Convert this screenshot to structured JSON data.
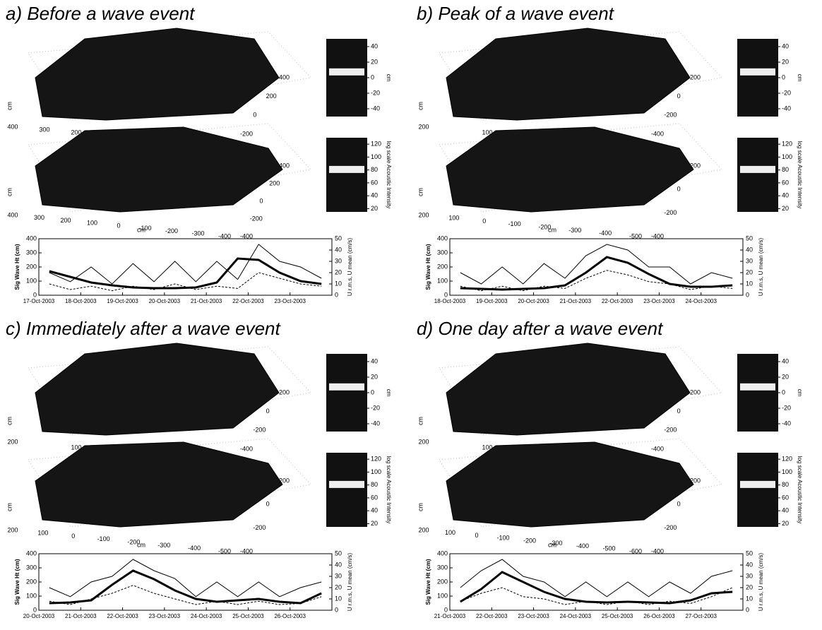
{
  "chart_data": [
    {
      "type": "line",
      "title": "a) Before a wave event",
      "categories": [
        "17-Oct-2003",
        null,
        "18-Oct-2003",
        null,
        "19-Oct-2003",
        null,
        "20-Oct-2003",
        null,
        "21-Oct-2003",
        null,
        "22-Oct-2003",
        null,
        "23-Oct-2003",
        null
      ],
      "ylabel": "Sig Wave Ht (cm)",
      "ylim": [
        0,
        400
      ],
      "yticks": [
        0,
        100,
        200,
        300,
        400
      ],
      "y2label": "U r.m.s, U mean (cm/s)",
      "y2lim": [
        0,
        50
      ],
      "y2ticks": [
        0,
        10,
        20,
        30,
        40,
        50
      ],
      "series": [
        {
          "color": "#000000",
          "values": [
            170,
            130,
            90,
            70,
            55,
            50,
            50,
            55,
            90,
            260,
            250,
            160,
            100,
            80
          ]
        },
        {
          "color": "#000000",
          "axis": "y2",
          "values": [
            20,
            12,
            25,
            10,
            28,
            12,
            30,
            12,
            30,
            14,
            45,
            30,
            25,
            15
          ]
        },
        {
          "color": "#000000",
          "axis": "y2",
          "values": [
            10,
            5,
            8,
            4,
            8,
            5,
            10,
            5,
            8,
            6,
            20,
            15,
            10,
            8
          ]
        }
      ],
      "colorbars": [
        {
          "label": "cm",
          "lim": [
            -50,
            50
          ],
          "ticks": [
            40,
            20,
            0,
            -20,
            -40
          ]
        },
        {
          "label": "log scale Acoustic Intensity",
          "lim": [
            15,
            130
          ],
          "ticks": [
            120,
            100,
            80,
            60,
            40,
            20
          ]
        }
      ],
      "surfaces": [
        {
          "label": "cm",
          "xticks": [
            400,
            300,
            200
          ],
          "yticks": [
            400,
            200,
            0,
            -200
          ]
        },
        {
          "label": "cm",
          "xlabel": "cm",
          "xticks": [
            400,
            300,
            200,
            100,
            0,
            -100,
            -200,
            -300,
            -400
          ],
          "yticks": [
            400,
            200,
            0,
            -200,
            -400
          ]
        }
      ]
    },
    {
      "type": "line",
      "title": "b) Peak of a wave event",
      "categories": [
        "18-Oct-2003",
        null,
        "19-Oct-2003",
        null,
        "20-Oct-2003",
        null,
        "21-Oct-2003",
        null,
        "22-Oct-2003",
        null,
        "23-Oct-2003",
        null,
        "24-Oct-2003",
        null
      ],
      "ylabel": "Sig Wave Ht (cm)",
      "ylim": [
        0,
        400
      ],
      "yticks": [
        0,
        100,
        200,
        300,
        400
      ],
      "y2label": "U r.m.s, U mean (cm/s)",
      "y2lim": [
        0,
        50
      ],
      "y2ticks": [
        0,
        10,
        20,
        30,
        40,
        50
      ],
      "series": [
        {
          "color": "#000000",
          "values": [
            50,
            45,
            40,
            45,
            50,
            70,
            160,
            270,
            230,
            150,
            80,
            60,
            60,
            70
          ]
        },
        {
          "color": "#000000",
          "axis": "y2",
          "values": [
            20,
            10,
            25,
            10,
            28,
            15,
            35,
            45,
            40,
            25,
            25,
            10,
            20,
            15
          ]
        },
        {
          "color": "#000000",
          "axis": "y2",
          "values": [
            8,
            4,
            8,
            4,
            8,
            6,
            15,
            22,
            18,
            12,
            10,
            5,
            8,
            6
          ]
        }
      ],
      "colorbars": [
        {
          "label": "cm",
          "lim": [
            -50,
            50
          ],
          "ticks": [
            40,
            20,
            0,
            -20,
            -40
          ]
        },
        {
          "label": "log scale Acoustic Intensity",
          "lim": [
            15,
            130
          ],
          "ticks": [
            120,
            100,
            80,
            60,
            40,
            20
          ]
        }
      ],
      "surfaces": [
        {
          "label": "cm",
          "xticks": [
            200,
            100
          ],
          "yticks": [
            200,
            0,
            -200,
            -400
          ]
        },
        {
          "label": "cm",
          "xlabel": "cm",
          "xticks": [
            200,
            100,
            0,
            -100,
            -200,
            -300,
            -400,
            -500
          ],
          "yticks": [
            200,
            0,
            -200,
            -400
          ]
        }
      ]
    },
    {
      "type": "line",
      "title": "c) Immediately after a wave event",
      "categories": [
        "20-Oct-2003",
        null,
        "21-Oct-2003",
        null,
        "22-Oct-2003",
        null,
        "23-Oct-2003",
        null,
        "24-Oct-2003",
        null,
        "25-Oct-2003",
        null,
        "26-Oct-2003",
        null
      ],
      "ylabel": "Sig Wave Ht (cm)",
      "ylim": [
        0,
        400
      ],
      "yticks": [
        0,
        100,
        200,
        300,
        400
      ],
      "y2label": "U r.m.s, U mean (cm/s)",
      "y2lim": [
        0,
        50
      ],
      "y2ticks": [
        0,
        10,
        20,
        30,
        40,
        50
      ],
      "series": [
        {
          "color": "#000000",
          "values": [
            50,
            55,
            70,
            180,
            280,
            220,
            140,
            80,
            60,
            70,
            80,
            60,
            50,
            120
          ]
        },
        {
          "color": "#000000",
          "axis": "y2",
          "values": [
            20,
            12,
            25,
            30,
            45,
            35,
            28,
            12,
            25,
            12,
            25,
            12,
            20,
            25
          ]
        },
        {
          "color": "#000000",
          "axis": "y2",
          "values": [
            8,
            5,
            10,
            15,
            22,
            15,
            10,
            5,
            8,
            5,
            8,
            5,
            6,
            12
          ]
        }
      ],
      "colorbars": [
        {
          "label": "cm",
          "lim": [
            -50,
            50
          ],
          "ticks": [
            40,
            20,
            0,
            -20,
            -40
          ]
        },
        {
          "label": "log scale Acoustic Intensity",
          "lim": [
            15,
            130
          ],
          "ticks": [
            120,
            100,
            80,
            60,
            40,
            20
          ]
        }
      ],
      "surfaces": [
        {
          "label": "cm",
          "xticks": [
            200,
            100
          ],
          "yticks": [
            200,
            0,
            -200,
            -400
          ]
        },
        {
          "label": "cm",
          "xlabel": "cm",
          "xticks": [
            200,
            100,
            0,
            -100,
            -200,
            -300,
            -400,
            -500
          ],
          "yticks": [
            200,
            0,
            -200,
            -400
          ]
        }
      ]
    },
    {
      "type": "line",
      "title": "d) One day after a wave event",
      "categories": [
        "21-Oct-2003",
        null,
        "22-Oct-2003",
        null,
        "23-Oct-2003",
        null,
        "24-Oct-2003",
        null,
        "25-Oct-2003",
        null,
        "26-Oct-2003",
        null,
        "27-Oct-2003",
        null
      ],
      "ylabel": "Sig Wave Ht (cm)",
      "ylim": [
        0,
        400
      ],
      "yticks": [
        0,
        100,
        200,
        300,
        400
      ],
      "y2label": "U r.m.s, U mean (cm/s)",
      "y2lim": [
        0,
        50
      ],
      "y2ticks": [
        0,
        10,
        20,
        30,
        40,
        50
      ],
      "series": [
        {
          "color": "#000000",
          "values": [
            60,
            150,
            270,
            200,
            130,
            80,
            60,
            55,
            60,
            55,
            50,
            70,
            120,
            130
          ]
        },
        {
          "color": "#000000",
          "axis": "y2",
          "values": [
            20,
            35,
            45,
            30,
            25,
            12,
            25,
            12,
            25,
            12,
            25,
            15,
            30,
            35
          ]
        },
        {
          "color": "#000000",
          "axis": "y2",
          "values": [
            8,
            15,
            20,
            12,
            10,
            5,
            8,
            5,
            8,
            5,
            8,
            6,
            12,
            20
          ]
        }
      ],
      "colorbars": [
        {
          "label": "cm",
          "lim": [
            -50,
            50
          ],
          "ticks": [
            40,
            20,
            0,
            -20,
            -40
          ]
        },
        {
          "label": "log scale Acoustic Intensity",
          "lim": [
            15,
            130
          ],
          "ticks": [
            120,
            100,
            80,
            60,
            40,
            20
          ]
        }
      ],
      "surfaces": [
        {
          "label": "cm",
          "xticks": [
            200,
            100
          ],
          "yticks": [
            200,
            0,
            -200,
            -400
          ]
        },
        {
          "label": "cm",
          "xlabel": "cm",
          "xticks": [
            200,
            100,
            0,
            -100,
            -200,
            -300,
            -400,
            -500,
            -600
          ],
          "yticks": [
            200,
            0,
            -200,
            -400
          ]
        }
      ]
    }
  ]
}
